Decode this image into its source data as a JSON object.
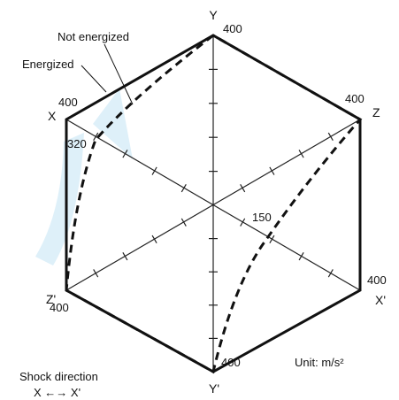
{
  "axes": {
    "y": "Y",
    "y_prime": "Y'",
    "x": "X",
    "x_prime": "X'",
    "z": "Z",
    "z_prime": "Z'"
  },
  "values": {
    "y": "400",
    "z": "400",
    "x_prime": "400",
    "y_prime": "400",
    "z_prime": "400",
    "x": "400",
    "x_not_energized": "320",
    "x_prime_energized": "150"
  },
  "legend": {
    "not_energized": "Not energized",
    "energized": "Energized"
  },
  "unit": "Unit: m/s²",
  "shock": {
    "title": "Shock direction",
    "axis": "X ←→ X'"
  }
}
